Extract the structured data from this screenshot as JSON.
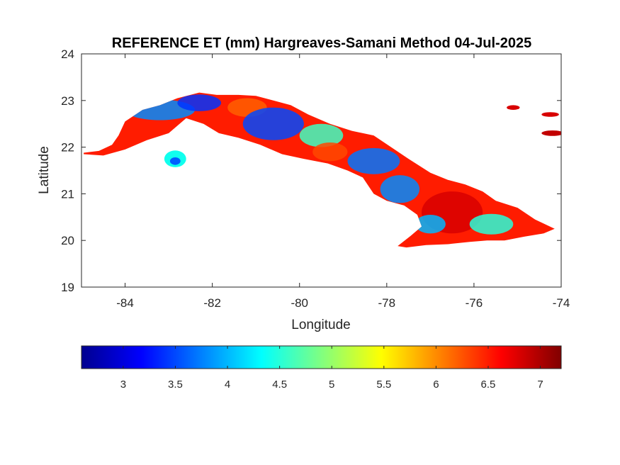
{
  "chart_data": {
    "type": "heatmap",
    "title": "REFERENCE ET (mm) Hargreaves-Samani Method  04-Jul-2025",
    "xlabel": "Longitude",
    "ylabel": "Latitude",
    "xlim": [
      -85,
      -74
    ],
    "ylim": [
      19,
      24
    ],
    "x_ticks": [
      -84,
      -82,
      -80,
      -78,
      -76,
      -74
    ],
    "y_ticks": [
      19,
      20,
      21,
      22,
      23,
      24
    ],
    "colorbar": {
      "orientation": "horizontal",
      "location": "below",
      "colormap": "jet",
      "range": [
        2.6,
        7.2
      ],
      "ticks": [
        3,
        3.5,
        4,
        4.5,
        5,
        5.5,
        6,
        6.5,
        7
      ],
      "colors": [
        "#00008f",
        "#0000ff",
        "#0080ff",
        "#00ffff",
        "#80ff80",
        "#ffff00",
        "#ff8000",
        "#ff0000",
        "#800000"
      ]
    },
    "region": {
      "outline_lonlat": [
        [
          -84.95,
          21.88
        ],
        [
          -84.6,
          21.92
        ],
        [
          -84.3,
          22.05
        ],
        [
          -84.15,
          22.25
        ],
        [
          -84.0,
          22.55
        ],
        [
          -83.6,
          22.8
        ],
        [
          -83.2,
          22.9
        ],
        [
          -82.8,
          23.05
        ],
        [
          -82.3,
          23.17
        ],
        [
          -81.9,
          23.12
        ],
        [
          -81.4,
          23.12
        ],
        [
          -81.0,
          23.1
        ],
        [
          -80.6,
          23.0
        ],
        [
          -80.2,
          22.9
        ],
        [
          -79.8,
          22.7
        ],
        [
          -79.3,
          22.5
        ],
        [
          -78.8,
          22.35
        ],
        [
          -78.3,
          22.25
        ],
        [
          -77.9,
          22.0
        ],
        [
          -77.5,
          21.75
        ],
        [
          -77.0,
          21.45
        ],
        [
          -76.6,
          21.3
        ],
        [
          -76.2,
          21.2
        ],
        [
          -75.8,
          21.05
        ],
        [
          -75.5,
          20.85
        ],
        [
          -75.0,
          20.7
        ],
        [
          -74.6,
          20.45
        ],
        [
          -74.15,
          20.25
        ],
        [
          -74.4,
          20.15
        ],
        [
          -74.85,
          20.08
        ],
        [
          -75.3,
          20.0
        ],
        [
          -75.7,
          20.0
        ],
        [
          -76.1,
          19.97
        ],
        [
          -76.6,
          19.92
        ],
        [
          -77.1,
          19.9
        ],
        [
          -77.55,
          19.85
        ],
        [
          -77.75,
          19.88
        ],
        [
          -77.45,
          20.1
        ],
        [
          -77.2,
          20.3
        ],
        [
          -77.3,
          20.55
        ],
        [
          -77.6,
          20.75
        ],
        [
          -78.0,
          20.85
        ],
        [
          -78.3,
          21.0
        ],
        [
          -78.55,
          21.35
        ],
        [
          -78.9,
          21.5
        ],
        [
          -79.35,
          21.65
        ],
        [
          -79.9,
          21.75
        ],
        [
          -80.4,
          21.85
        ],
        [
          -80.9,
          22.05
        ],
        [
          -81.4,
          22.2
        ],
        [
          -81.85,
          22.3
        ],
        [
          -82.2,
          22.5
        ],
        [
          -82.6,
          22.62
        ],
        [
          -83.0,
          22.3
        ],
        [
          -83.5,
          22.15
        ],
        [
          -84.0,
          21.95
        ],
        [
          -84.5,
          21.82
        ],
        [
          -84.95,
          21.85
        ]
      ],
      "outline_value": 6.5,
      "fields_lonlat": [
        {
          "center": [
            -83.2,
            22.8
          ],
          "radius": [
            0.8,
            0.22
          ],
          "value": 3.8
        },
        {
          "center": [
            -82.3,
            22.95
          ],
          "radius": [
            0.5,
            0.18
          ],
          "value": 3.4
        },
        {
          "center": [
            -81.2,
            22.85
          ],
          "radius": [
            0.45,
            0.2
          ],
          "value": 6.2
        },
        {
          "center": [
            -80.6,
            22.5
          ],
          "radius": [
            0.7,
            0.35
          ],
          "value": 3.5
        },
        {
          "center": [
            -79.5,
            22.25
          ],
          "radius": [
            0.5,
            0.25
          ],
          "value": 4.6
        },
        {
          "center": [
            -78.3,
            21.7
          ],
          "radius": [
            0.6,
            0.28
          ],
          "value": 3.7
        },
        {
          "center": [
            -77.7,
            21.1
          ],
          "radius": [
            0.45,
            0.3
          ],
          "value": 3.8
        },
        {
          "center": [
            -79.3,
            21.9
          ],
          "radius": [
            0.4,
            0.2
          ],
          "value": 6.3
        },
        {
          "center": [
            -76.5,
            20.6
          ],
          "radius": [
            0.7,
            0.45
          ],
          "value": 6.8
        },
        {
          "center": [
            -75.6,
            20.35
          ],
          "radius": [
            0.5,
            0.22
          ],
          "value": 4.5
        },
        {
          "center": [
            -77.0,
            20.35
          ],
          "radius": [
            0.35,
            0.2
          ],
          "value": 4.0
        }
      ],
      "islands_lonlat": [
        {
          "center": [
            -82.85,
            21.75
          ],
          "radius": [
            0.25,
            0.18
          ],
          "value": 4.4
        },
        {
          "center": [
            -82.85,
            21.7
          ],
          "radius": [
            0.12,
            0.08
          ],
          "value": 3.6
        },
        {
          "center": [
            -75.1,
            22.85
          ],
          "radius": [
            0.15,
            0.05
          ],
          "value": 6.8
        },
        {
          "center": [
            -74.25,
            22.7
          ],
          "radius": [
            0.2,
            0.05
          ],
          "value": 6.8
        },
        {
          "center": [
            -74.2,
            22.3
          ],
          "radius": [
            0.25,
            0.06
          ],
          "value": 6.9
        }
      ]
    }
  }
}
